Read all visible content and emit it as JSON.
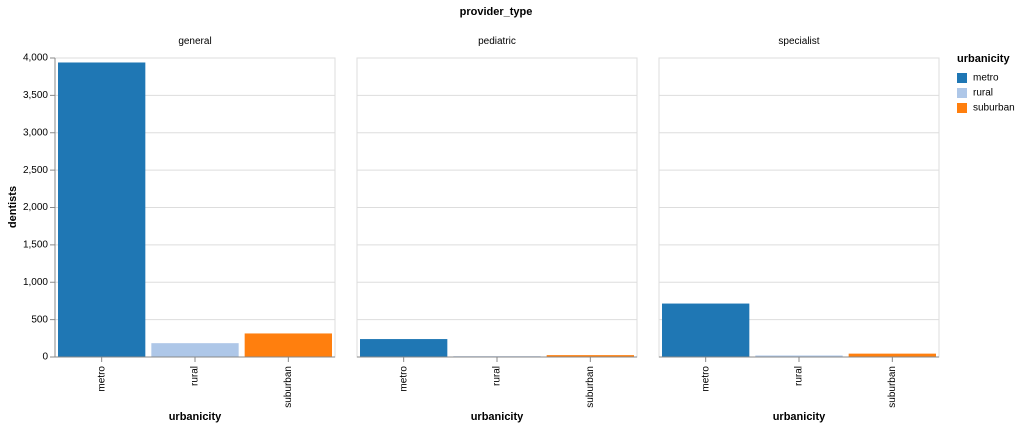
{
  "chart_data": {
    "type": "bar",
    "title": "provider_type",
    "facet_field": "provider_type",
    "facets": [
      "general",
      "pediatric",
      "specialist"
    ],
    "categories": [
      "metro",
      "rural",
      "suburban"
    ],
    "xlabel": "urbanicity",
    "ylabel": "dentists",
    "ylim": [
      0,
      4000
    ],
    "yticks": [
      0,
      500,
      1000,
      1500,
      2000,
      2500,
      3000,
      3500,
      4000
    ],
    "ytick_labels": [
      "0",
      "500",
      "1,000",
      "1,500",
      "2,000",
      "2,500",
      "3,000",
      "3,500",
      "4,000"
    ],
    "grid": true,
    "values": {
      "general": [
        3940,
        185,
        315
      ],
      "pediatric": [
        240,
        3,
        25
      ],
      "specialist": [
        715,
        20,
        45
      ]
    },
    "colors": {
      "metro": "#1f77b4",
      "rural": "#aec7e8",
      "suburban": "#ff7f0e"
    },
    "legend": {
      "title": "urbanicity",
      "items": [
        "metro",
        "rural",
        "suburban"
      ],
      "placement": "right"
    }
  }
}
